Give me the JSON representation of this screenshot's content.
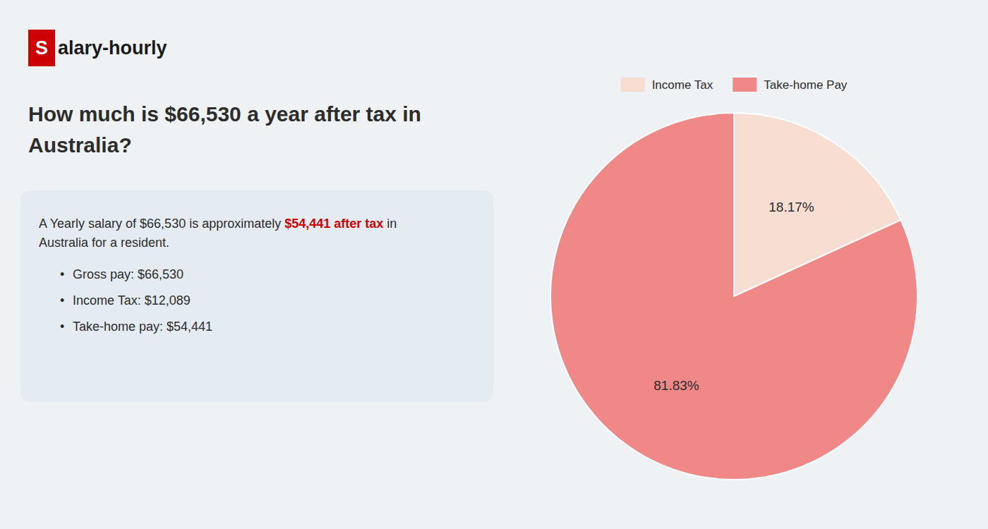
{
  "chart_data": {
    "type": "pie",
    "title": "How much is $66,530 a year after tax in Australia?",
    "categories": [
      "Income Tax",
      "Take-home Pay"
    ],
    "values": [
      18.17,
      81.83
    ],
    "value_labels": [
      "18.17%",
      "81.83%"
    ],
    "colors": [
      "#f8ddd3",
      "#f08888"
    ],
    "data_labels": true,
    "legend": "top",
    "annotations": [
      [
        {
          "text": "S",
          "color": "#cc0000"
        },
        {
          "text": "alary-hourly"
        }
      ],
      [
        {
          "text": "A Yearly salary of $66,530 is approximately "
        },
        {
          "text": "$54,441 after tax",
          "color": "#cc0000"
        },
        {
          "text": " in"
        }
      ],
      [
        {
          "text": "Australia for a resident."
        }
      ],
      [
        {
          "text": "•"
        },
        {
          "text": "Gross pay: $66,530"
        }
      ],
      [
        {
          "text": "•"
        },
        {
          "text": "Income Tax: $12,089"
        }
      ],
      [
        {
          "text": "•"
        },
        {
          "text": "Take-home pay: $54,441"
        }
      ]
    ]
  }
}
